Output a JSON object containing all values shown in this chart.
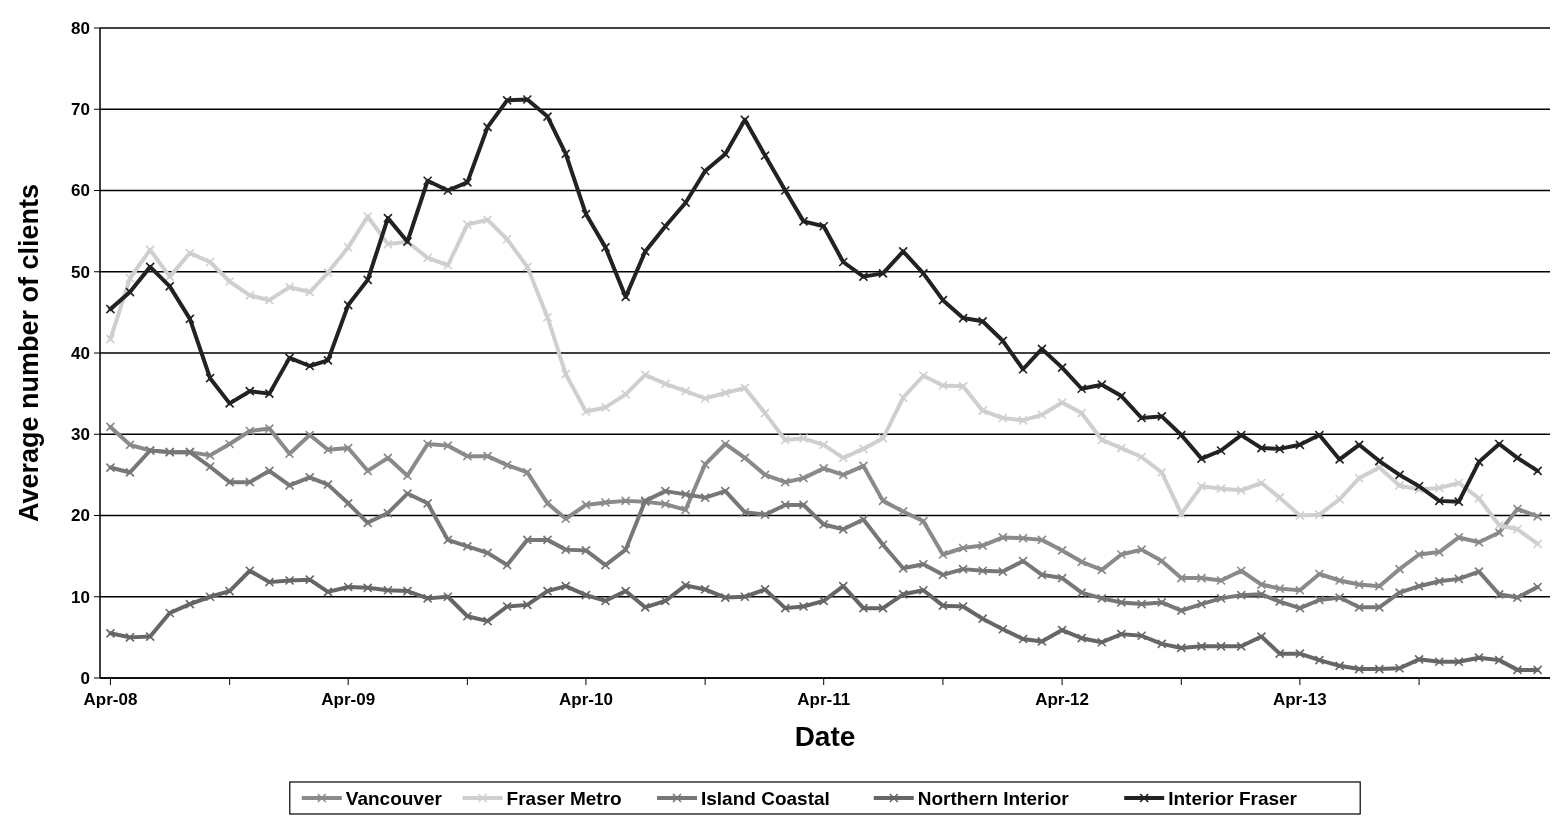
{
  "chart_data": {
    "type": "line",
    "xlabel": "Date",
    "ylabel": "Average number of clients",
    "x": [
      "2008-04",
      "2008-05",
      "2008-06",
      "2008-07",
      "2008-08",
      "2008-09",
      "2008-10",
      "2008-11",
      "2008-12",
      "2009-01",
      "2009-02",
      "2009-03",
      "2009-04",
      "2009-05",
      "2009-06",
      "2009-07",
      "2009-08",
      "2009-09",
      "2009-10",
      "2009-11",
      "2009-12",
      "2010-01",
      "2010-02",
      "2010-03",
      "2010-04",
      "2010-05",
      "2010-06",
      "2010-07",
      "2010-08",
      "2010-09",
      "2010-10",
      "2010-11",
      "2010-12",
      "2011-01",
      "2011-02",
      "2011-03",
      "2011-04",
      "2011-05",
      "2011-06",
      "2011-07",
      "2011-08",
      "2011-09",
      "2011-10",
      "2011-11",
      "2011-12",
      "2012-01",
      "2012-02",
      "2012-03",
      "2012-04",
      "2012-05",
      "2012-06",
      "2012-07",
      "2012-08",
      "2012-09",
      "2012-10",
      "2012-11",
      "2012-12",
      "2013-01",
      "2013-02",
      "2013-03",
      "2013-04",
      "2013-05",
      "2013-06",
      "2013-07",
      "2013-08",
      "2013-09",
      "2013-10",
      "2013-11",
      "2013-12",
      "2014-01",
      "2014-02",
      "2014-03",
      "2014-04"
    ],
    "xlim": [
      "2008-03-16",
      "2014-04-20"
    ],
    "xticks": [
      {
        "value": "2008-04",
        "label": "Apr-08"
      },
      {
        "value": "2008-10",
        "label": null
      },
      {
        "value": "2009-04",
        "label": "Apr-09"
      },
      {
        "value": "2009-10",
        "label": null
      },
      {
        "value": "2010-04",
        "label": "Apr-10"
      },
      {
        "value": "2010-10",
        "label": null
      },
      {
        "value": "2011-04",
        "label": "Apr-11"
      },
      {
        "value": "2011-10",
        "label": null
      },
      {
        "value": "2012-04",
        "label": "Apr-12"
      },
      {
        "value": "2012-10",
        "label": null
      },
      {
        "value": "2013-04",
        "label": "Apr-13"
      },
      {
        "value": "2013-10",
        "label": null
      }
    ],
    "ylim": [
      0,
      80
    ],
    "yticks": [
      0,
      10,
      20,
      30,
      40,
      50,
      60,
      70,
      80
    ],
    "grid": "y",
    "legend": "bottom",
    "marker": "cross",
    "line_style": "solid",
    "series": [
      {
        "name": "Vancouver",
        "color": "#8a8a8a",
        "values": [
          30.9,
          28.7,
          28.0,
          27.8,
          27.8,
          27.4,
          28.8,
          30.4,
          30.7,
          27.6,
          29.9,
          28.1,
          28.3,
          25.5,
          27.1,
          24.9,
          28.8,
          28.6,
          27.3,
          27.3,
          26.2,
          25.3,
          21.5,
          19.6,
          21.3,
          21.6,
          21.8,
          21.7,
          21.4,
          20.7,
          26.3,
          28.8,
          27.1,
          25.0,
          24.1,
          24.6,
          25.8,
          25.0,
          26.1,
          21.8,
          20.5,
          19.3,
          15.2,
          16.0,
          16.3,
          17.3,
          17.2,
          17.0,
          15.7,
          14.3,
          13.3,
          15.2,
          15.8,
          14.4,
          12.3,
          12.3,
          12.0,
          13.2,
          11.5,
          11.0,
          10.8,
          12.8,
          12.0,
          11.5,
          11.3,
          13.4,
          15.2,
          15.5,
          17.3,
          16.7,
          17.9,
          20.8,
          19.9
        ]
      },
      {
        "name": "Fraser Metro",
        "color": "#cfcfcf",
        "values": [
          41.7,
          49.2,
          52.7,
          49.4,
          52.3,
          51.2,
          48.8,
          47.1,
          46.5,
          48.1,
          47.5,
          49.9,
          53.0,
          56.8,
          53.4,
          53.7,
          51.7,
          50.8,
          55.8,
          56.4,
          54.0,
          50.6,
          44.4,
          37.4,
          32.8,
          33.3,
          34.9,
          37.3,
          36.2,
          35.3,
          34.4,
          35.1,
          35.7,
          32.6,
          29.3,
          29.5,
          28.7,
          27.1,
          28.2,
          29.5,
          34.5,
          37.2,
          36.0,
          35.9,
          32.9,
          32.0,
          31.7,
          32.4,
          33.9,
          32.6,
          29.3,
          28.3,
          27.2,
          25.3,
          20.2,
          23.6,
          23.3,
          23.1,
          24.0,
          22.2,
          20.0,
          20.1,
          22.0,
          24.6,
          25.9,
          23.7,
          23.2,
          23.4,
          24.0,
          22.1,
          18.8,
          18.3,
          16.5
        ]
      },
      {
        "name": "Island Coastal",
        "color": "#777777",
        "values": [
          25.9,
          25.3,
          28.0,
          27.8,
          27.8,
          26.0,
          24.1,
          24.1,
          25.5,
          23.7,
          24.7,
          23.8,
          21.5,
          19.1,
          20.3,
          22.7,
          21.5,
          17.0,
          16.2,
          15.4,
          13.9,
          17.0,
          17.0,
          15.8,
          15.7,
          13.9,
          15.8,
          21.8,
          23.0,
          22.6,
          22.2,
          23.0,
          20.4,
          20.1,
          21.3,
          21.3,
          18.9,
          18.3,
          19.5,
          16.4,
          13.5,
          14.0,
          12.7,
          13.4,
          13.2,
          13.1,
          14.4,
          12.7,
          12.3,
          10.5,
          9.8,
          9.3,
          9.1,
          9.3,
          8.3,
          9.1,
          9.8,
          10.2,
          10.3,
          9.4,
          8.6,
          9.6,
          9.9,
          8.7,
          8.7,
          10.5,
          11.3,
          11.9,
          12.2,
          13.1,
          10.3,
          9.9,
          11.2
        ]
      },
      {
        "name": "Northern Interior",
        "color": "#666666",
        "values": [
          5.5,
          5.0,
          5.1,
          8.0,
          9.1,
          10.0,
          10.7,
          13.2,
          11.8,
          12.0,
          12.1,
          10.6,
          11.2,
          11.1,
          10.8,
          10.7,
          9.8,
          10.0,
          7.6,
          7.0,
          8.8,
          9.0,
          10.7,
          11.3,
          10.2,
          9.5,
          10.7,
          8.7,
          9.5,
          11.4,
          10.9,
          9.9,
          10.0,
          10.9,
          8.6,
          8.8,
          9.5,
          11.3,
          8.6,
          8.6,
          10.3,
          10.8,
          8.9,
          8.8,
          7.3,
          6.0,
          4.8,
          4.5,
          5.9,
          4.9,
          4.4,
          5.4,
          5.2,
          4.2,
          3.7,
          3.9,
          3.9,
          3.9,
          5.1,
          3.0,
          3.0,
          2.2,
          1.5,
          1.1,
          1.1,
          1.2,
          2.3,
          2.0,
          2.0,
          2.5,
          2.2,
          1.0,
          1.0
        ]
      },
      {
        "name": "Interior Fraser",
        "color": "#222222",
        "values": [
          45.4,
          47.5,
          50.6,
          48.2,
          44.2,
          36.9,
          33.8,
          35.3,
          35.0,
          39.4,
          38.4,
          39.1,
          45.9,
          49.0,
          56.6,
          53.7,
          61.2,
          60.0,
          61.0,
          67.8,
          71.1,
          71.2,
          69.1,
          64.5,
          57.1,
          53.0,
          46.9,
          52.5,
          55.6,
          58.5,
          62.4,
          64.5,
          68.7,
          64.3,
          60.0,
          56.2,
          55.6,
          51.2,
          49.4,
          49.8,
          52.5,
          49.8,
          46.5,
          44.3,
          43.9,
          41.5,
          38.0,
          40.5,
          38.2,
          35.6,
          36.1,
          34.7,
          32.0,
          32.2,
          29.9,
          27.0,
          28.0,
          29.9,
          28.3,
          28.2,
          28.7,
          29.9,
          26.9,
          28.7,
          26.7,
          25.0,
          23.6,
          21.8,
          21.7,
          26.6,
          28.8,
          27.1,
          25.5
        ]
      }
    ]
  }
}
